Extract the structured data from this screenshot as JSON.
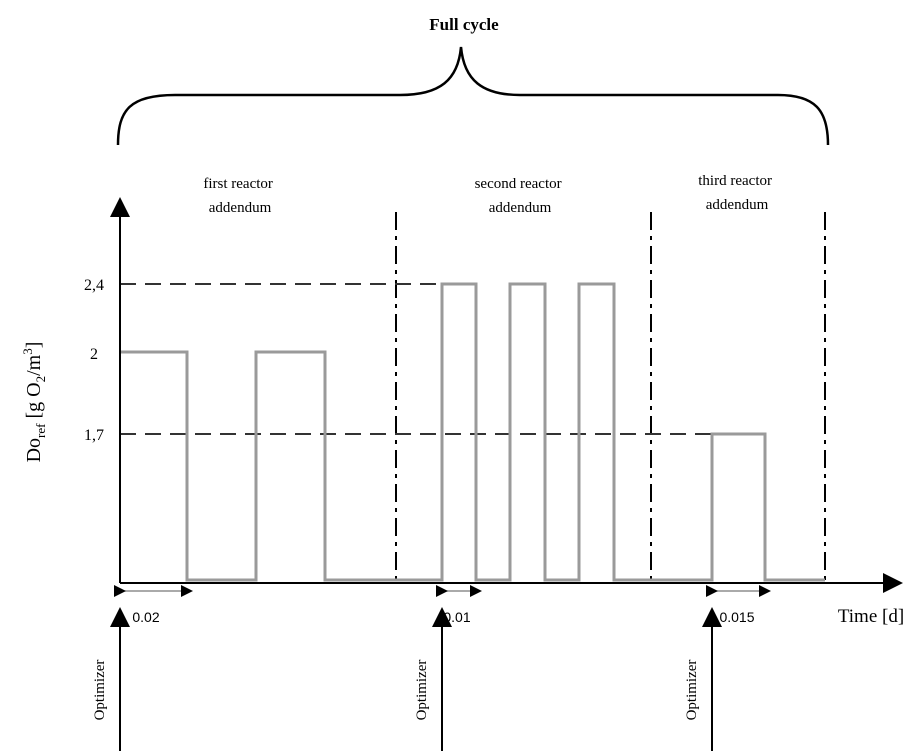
{
  "title": "Full cycle",
  "phases": [
    {
      "line1": "first reactor",
      "line2": "addendum"
    },
    {
      "line1": "second reactor",
      "line2": "addendum"
    },
    {
      "line1": "third reactor",
      "line2": "addendum"
    }
  ],
  "y_axis": {
    "label_main": "Do",
    "label_sub": "ref",
    "label_rest": " [g O",
    "label_sub2": "2",
    "label_slash": "/m",
    "label_sup": "3",
    "label_close": "]",
    "ticks": [
      "2,4",
      "2",
      "1,7"
    ]
  },
  "x_axis": {
    "label": "Time [d]"
  },
  "durations": [
    "0.02",
    "0.01",
    "0.015"
  ],
  "optimizer_label": "Optimizer",
  "chart_data": {
    "type": "line",
    "x_unit": "d",
    "y_unit": "g O2/m3",
    "segments": [
      {
        "phase": "first reactor addendum",
        "level": 2,
        "pulses": 2,
        "pulse_width": 0.02
      },
      {
        "phase": "second reactor addendum",
        "level": 2.4,
        "pulses": 3,
        "pulse_width": 0.01
      },
      {
        "phase": "third reactor addendum",
        "level": 1.7,
        "pulses": 1,
        "pulse_width": 0.015
      }
    ],
    "reference_levels": [
      2.4,
      2,
      1.7
    ]
  },
  "colors": {
    "axis": "#000000",
    "signal": "#9a9a9a",
    "dashed": "#333333",
    "text": "#000000"
  }
}
